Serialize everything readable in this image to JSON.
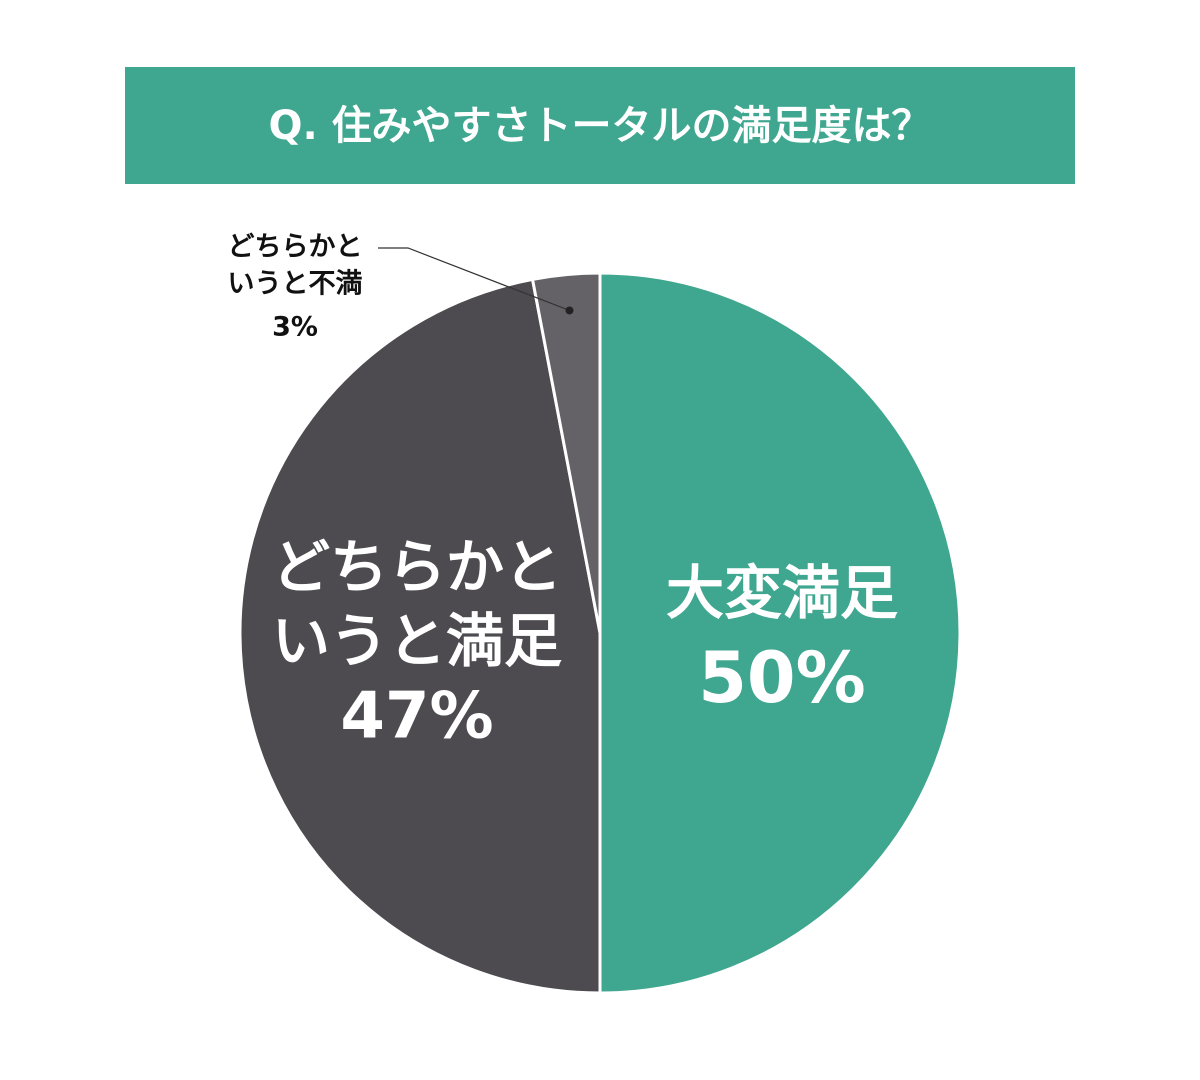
{
  "chart_data": {
    "type": "pie",
    "title": "Q. 住みやすさトータルの満足度は？",
    "categories": [
      [
        "大変満足"
      ],
      [
        "どちらかと",
        "いうと満足"
      ],
      [
        "どちらかと",
        "いうと不満"
      ]
    ],
    "values": [
      50,
      47,
      3
    ],
    "value_labels": [
      "50%",
      "47%",
      "3%"
    ],
    "colors": [
      "#3fa68f",
      "#4d4b50",
      "#646266"
    ]
  }
}
